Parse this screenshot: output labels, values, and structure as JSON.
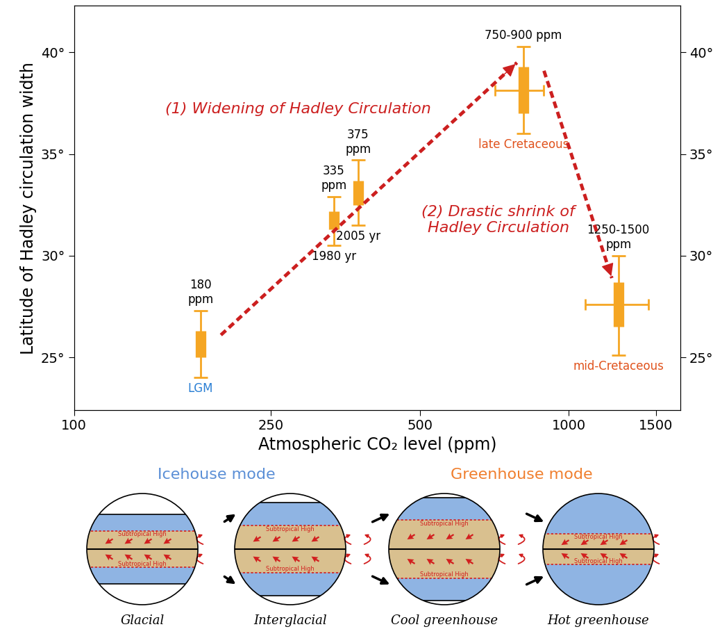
{
  "chart_data": {
    "type": "boxplot",
    "xlabel": "Atmospheric CO₂ level (ppm)",
    "ylabel": "Latitude of Hadley circulation width",
    "log": "x",
    "grid": false,
    "xlim": [
      100,
      1680
    ],
    "xticks": [
      100,
      250,
      500,
      1000,
      1500
    ],
    "ylim": [
      22.4,
      42.3
    ],
    "yticks": [
      {
        "value": 25,
        "label": "25°"
      },
      {
        "value": 30,
        "label": "30°"
      },
      {
        "value": 35,
        "label": "35°"
      },
      {
        "value": 40,
        "label": "40°"
      }
    ],
    "y2lim": [
      22.4,
      42.3
    ],
    "y2ticks": [
      {
        "value": 25,
        "label": "25°"
      },
      {
        "value": 30,
        "label": "30°"
      },
      {
        "value": 35,
        "label": "35°"
      },
      {
        "value": 40,
        "label": "40°"
      }
    ],
    "series": [
      {
        "name": "LGM",
        "ppm_label": "180\nppm",
        "color": "#f5a623",
        "x": 180,
        "box": [
          25.0,
          26.3
        ],
        "whisker": [
          24.0,
          27.3
        ]
      },
      {
        "name": "1980 yr",
        "ppm_label": "335\nppm",
        "color": "#f5a623",
        "x": 335,
        "box": [
          31.3,
          32.2
        ],
        "whisker": [
          30.5,
          32.9
        ]
      },
      {
        "name": "2005 yr",
        "ppm_label": "375\nppm",
        "color": "#f5a623",
        "x": 375,
        "box": [
          32.5,
          33.7
        ],
        "whisker": [
          31.5,
          34.7
        ]
      },
      {
        "name": "late Cretaceous",
        "ppm_label": "750-900 ppm",
        "color": "#f5a623",
        "x": 810,
        "x_range": [
          710,
          890
        ],
        "box": [
          37.0,
          39.3
        ],
        "whisker": [
          36.0,
          40.3
        ]
      },
      {
        "name": "mid-Cretaceous",
        "ppm_label": "1250-1500\nppm",
        "color": "#f5a623",
        "x": 1260,
        "x_range": [
          1080,
          1450
        ],
        "box": [
          26.5,
          28.7
        ],
        "whisker": [
          25.1,
          30.0
        ]
      }
    ],
    "arrows": [
      {
        "label": "(1) Widening of Hadley Circulation",
        "from": "LGM",
        "to": "late Cretaceous",
        "color": "#cc1f1f"
      },
      {
        "label": "(2) Drastic shrink of\nHadley Circulation",
        "from": "late Cretaceous",
        "to": "mid-Cretaceous",
        "color": "#cc1f1f"
      }
    ]
  },
  "diagram": {
    "modes": [
      {
        "label": "Icehouse mode",
        "color": "#5b8fd6"
      },
      {
        "label": "Greenhouse mode",
        "color": "#f07f2e"
      }
    ],
    "band_label": "Subtropical High",
    "globes": [
      "Glacial",
      "Interglacial",
      "Cool greenhouse",
      "Hot greenhouse"
    ]
  }
}
